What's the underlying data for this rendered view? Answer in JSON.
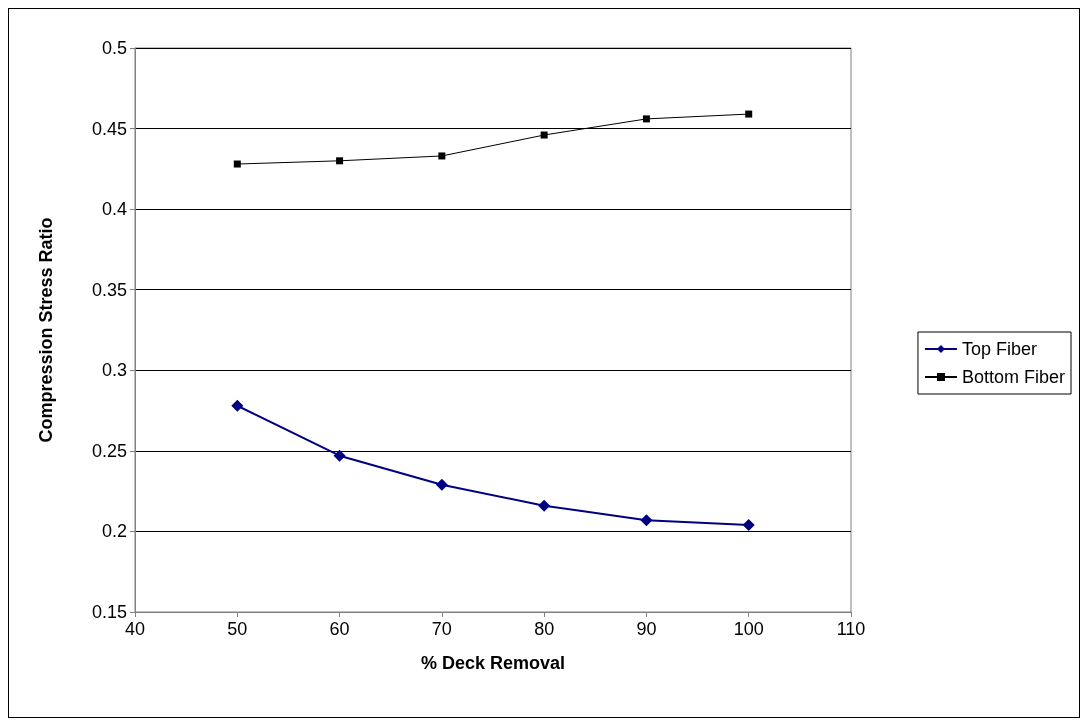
{
  "chart_data": {
    "type": "line",
    "xlabel": "% Deck Removal",
    "ylabel": "Compression Stress Ratio",
    "x": [
      50,
      60,
      70,
      80,
      90,
      100
    ],
    "series": [
      {
        "name": "Top Fiber",
        "color": "#000080",
        "marker": "diamond",
        "values": [
          0.278,
          0.247,
          0.229,
          0.216,
          0.207,
          0.204
        ]
      },
      {
        "name": "Bottom Fiber",
        "color": "#000000",
        "marker": "square",
        "values": [
          0.428,
          0.43,
          0.433,
          0.446,
          0.456,
          0.459
        ]
      }
    ],
    "xlim": [
      40,
      110
    ],
    "xticks": [
      40,
      50,
      60,
      70,
      80,
      90,
      100,
      110
    ],
    "ylim": [
      0.15,
      0.5
    ],
    "yticks": [
      0.15,
      0.2,
      0.25,
      0.3,
      0.35,
      0.4,
      0.45,
      0.5
    ],
    "grid": "y",
    "legend": "right",
    "line_style": "solid"
  }
}
